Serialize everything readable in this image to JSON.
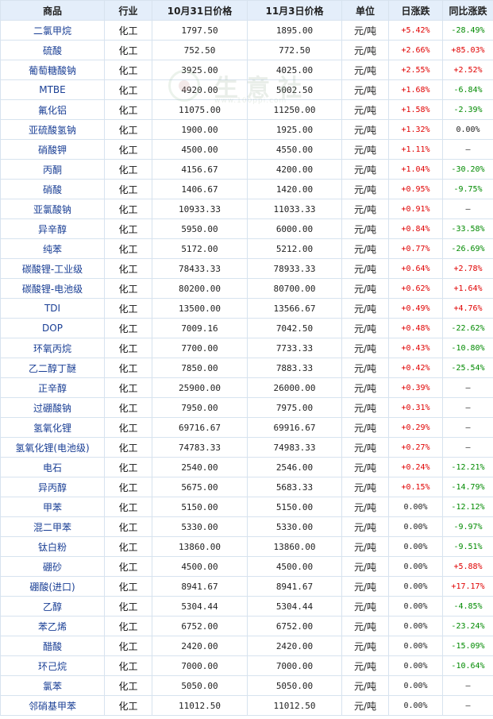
{
  "headers": {
    "product": "商品",
    "industry": "行业",
    "price_oct31": "10月31日价格",
    "price_nov3": "11月3日价格",
    "unit": "单位",
    "daily_change": "日涨跌",
    "yoy_change": "同比涨跌"
  },
  "watermark": {
    "text": "生意社",
    "url": "www.100ppi.com"
  },
  "colors": {
    "up": "#e00000",
    "down": "#008a00",
    "name": "#1a3f95",
    "header_bg": "#e4eefa"
  },
  "rows": [
    {
      "name": "二氯甲烷",
      "industry": "化工",
      "p1": "1797.50",
      "p2": "1895.00",
      "unit": "元/吨",
      "day": "+5.42%",
      "yoy": "-28.49%"
    },
    {
      "name": "硫酸",
      "industry": "化工",
      "p1": "752.50",
      "p2": "772.50",
      "unit": "元/吨",
      "day": "+2.66%",
      "yoy": "+85.03%"
    },
    {
      "name": "葡萄糖酸钠",
      "industry": "化工",
      "p1": "3925.00",
      "p2": "4025.00",
      "unit": "元/吨",
      "day": "+2.55%",
      "yoy": "+2.52%"
    },
    {
      "name": "MTBE",
      "industry": "化工",
      "p1": "4920.00",
      "p2": "5002.50",
      "unit": "元/吨",
      "day": "+1.68%",
      "yoy": "-6.84%"
    },
    {
      "name": "氟化铝",
      "industry": "化工",
      "p1": "11075.00",
      "p2": "11250.00",
      "unit": "元/吨",
      "day": "+1.58%",
      "yoy": "-2.39%"
    },
    {
      "name": "亚硫酸氢钠",
      "industry": "化工",
      "p1": "1900.00",
      "p2": "1925.00",
      "unit": "元/吨",
      "day": "+1.32%",
      "yoy": "0.00%"
    },
    {
      "name": "硝酸钾",
      "industry": "化工",
      "p1": "4500.00",
      "p2": "4550.00",
      "unit": "元/吨",
      "day": "+1.11%",
      "yoy": "—"
    },
    {
      "name": "丙酮",
      "industry": "化工",
      "p1": "4156.67",
      "p2": "4200.00",
      "unit": "元/吨",
      "day": "+1.04%",
      "yoy": "-30.20%"
    },
    {
      "name": "硝酸",
      "industry": "化工",
      "p1": "1406.67",
      "p2": "1420.00",
      "unit": "元/吨",
      "day": "+0.95%",
      "yoy": "-9.75%"
    },
    {
      "name": "亚氯酸钠",
      "industry": "化工",
      "p1": "10933.33",
      "p2": "11033.33",
      "unit": "元/吨",
      "day": "+0.91%",
      "yoy": "—"
    },
    {
      "name": "异辛醇",
      "industry": "化工",
      "p1": "5950.00",
      "p2": "6000.00",
      "unit": "元/吨",
      "day": "+0.84%",
      "yoy": "-33.58%"
    },
    {
      "name": "纯苯",
      "industry": "化工",
      "p1": "5172.00",
      "p2": "5212.00",
      "unit": "元/吨",
      "day": "+0.77%",
      "yoy": "-26.69%"
    },
    {
      "name": "碳酸锂-工业级",
      "industry": "化工",
      "p1": "78433.33",
      "p2": "78933.33",
      "unit": "元/吨",
      "day": "+0.64%",
      "yoy": "+2.78%"
    },
    {
      "name": "碳酸锂-电池级",
      "industry": "化工",
      "p1": "80200.00",
      "p2": "80700.00",
      "unit": "元/吨",
      "day": "+0.62%",
      "yoy": "+1.64%"
    },
    {
      "name": "TDI",
      "industry": "化工",
      "p1": "13500.00",
      "p2": "13566.67",
      "unit": "元/吨",
      "day": "+0.49%",
      "yoy": "+4.76%"
    },
    {
      "name": "DOP",
      "industry": "化工",
      "p1": "7009.16",
      "p2": "7042.50",
      "unit": "元/吨",
      "day": "+0.48%",
      "yoy": "-22.62%"
    },
    {
      "name": "环氧丙烷",
      "industry": "化工",
      "p1": "7700.00",
      "p2": "7733.33",
      "unit": "元/吨",
      "day": "+0.43%",
      "yoy": "-10.80%"
    },
    {
      "name": "乙二醇丁醚",
      "industry": "化工",
      "p1": "7850.00",
      "p2": "7883.33",
      "unit": "元/吨",
      "day": "+0.42%",
      "yoy": "-25.54%"
    },
    {
      "name": "正辛醇",
      "industry": "化工",
      "p1": "25900.00",
      "p2": "26000.00",
      "unit": "元/吨",
      "day": "+0.39%",
      "yoy": "—"
    },
    {
      "name": "过硼酸钠",
      "industry": "化工",
      "p1": "7950.00",
      "p2": "7975.00",
      "unit": "元/吨",
      "day": "+0.31%",
      "yoy": "—"
    },
    {
      "name": "氢氧化锂",
      "industry": "化工",
      "p1": "69716.67",
      "p2": "69916.67",
      "unit": "元/吨",
      "day": "+0.29%",
      "yoy": "—"
    },
    {
      "name": "氢氧化锂(电池级)",
      "industry": "化工",
      "p1": "74783.33",
      "p2": "74983.33",
      "unit": "元/吨",
      "day": "+0.27%",
      "yoy": "—"
    },
    {
      "name": "电石",
      "industry": "化工",
      "p1": "2540.00",
      "p2": "2546.00",
      "unit": "元/吨",
      "day": "+0.24%",
      "yoy": "-12.21%"
    },
    {
      "name": "异丙醇",
      "industry": "化工",
      "p1": "5675.00",
      "p2": "5683.33",
      "unit": "元/吨",
      "day": "+0.15%",
      "yoy": "-14.79%"
    },
    {
      "name": "甲苯",
      "industry": "化工",
      "p1": "5150.00",
      "p2": "5150.00",
      "unit": "元/吨",
      "day": "0.00%",
      "yoy": "-12.12%"
    },
    {
      "name": "混二甲苯",
      "industry": "化工",
      "p1": "5330.00",
      "p2": "5330.00",
      "unit": "元/吨",
      "day": "0.00%",
      "yoy": "-9.97%"
    },
    {
      "name": "钛白粉",
      "industry": "化工",
      "p1": "13860.00",
      "p2": "13860.00",
      "unit": "元/吨",
      "day": "0.00%",
      "yoy": "-9.51%"
    },
    {
      "name": "硼砂",
      "industry": "化工",
      "p1": "4500.00",
      "p2": "4500.00",
      "unit": "元/吨",
      "day": "0.00%",
      "yoy": "+5.88%"
    },
    {
      "name": "硼酸(进口)",
      "industry": "化工",
      "p1": "8941.67",
      "p2": "8941.67",
      "unit": "元/吨",
      "day": "0.00%",
      "yoy": "+17.17%"
    },
    {
      "name": "乙醇",
      "industry": "化工",
      "p1": "5304.44",
      "p2": "5304.44",
      "unit": "元/吨",
      "day": "0.00%",
      "yoy": "-4.85%"
    },
    {
      "name": "苯乙烯",
      "industry": "化工",
      "p1": "6752.00",
      "p2": "6752.00",
      "unit": "元/吨",
      "day": "0.00%",
      "yoy": "-23.24%"
    },
    {
      "name": "醋酸",
      "industry": "化工",
      "p1": "2420.00",
      "p2": "2420.00",
      "unit": "元/吨",
      "day": "0.00%",
      "yoy": "-15.09%"
    },
    {
      "name": "环己烷",
      "industry": "化工",
      "p1": "7000.00",
      "p2": "7000.00",
      "unit": "元/吨",
      "day": "0.00%",
      "yoy": "-10.64%"
    },
    {
      "name": "氯苯",
      "industry": "化工",
      "p1": "5050.00",
      "p2": "5050.00",
      "unit": "元/吨",
      "day": "0.00%",
      "yoy": "—"
    },
    {
      "name": "邻硝基甲苯",
      "industry": "化工",
      "p1": "11012.50",
      "p2": "11012.50",
      "unit": "元/吨",
      "day": "0.00%",
      "yoy": "—"
    }
  ]
}
